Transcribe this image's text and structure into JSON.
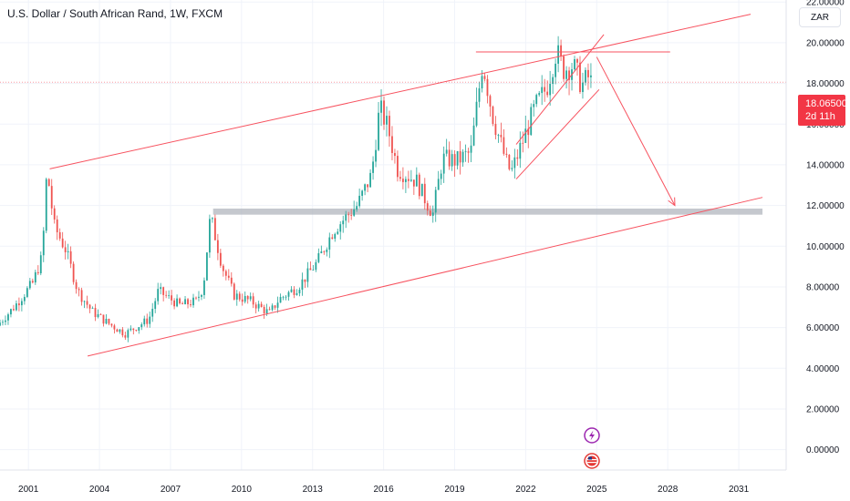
{
  "header": {
    "title": "U.S. Dollar / South African Rand, 1W, FXCM",
    "currency_button": "ZAR"
  },
  "price_badge": {
    "price": "18.06500",
    "countdown": "2d 11h"
  },
  "colors": {
    "up": "#26a69a",
    "down": "#ef5350",
    "drawing": "#f7525f",
    "support_zone": "#b2b5be",
    "price_badge": "#f23645"
  },
  "icons": [
    "lightning-event-icon",
    "us-flag-event-icon"
  ],
  "chart_data": {
    "type": "candlestick",
    "title": "U.S. Dollar / South African Rand, 1W, FXCM",
    "x_ticks": [
      "2001",
      "2004",
      "2007",
      "2010",
      "2013",
      "2016",
      "2019",
      "2022",
      "2025",
      "2028",
      "2031"
    ],
    "x_tick_years": [
      2001,
      2004,
      2007,
      2010,
      2013,
      2016,
      2019,
      2022,
      2025,
      2028,
      2031
    ],
    "y_ticks": [
      "22.00000",
      "20.00000",
      "18.00000",
      "16.00000",
      "14.00000",
      "12.00000",
      "10.00000",
      "8.00000",
      "6.00000",
      "4.00000",
      "2.00000",
      "0.00000"
    ],
    "y_tick_values": [
      22,
      20,
      18,
      16,
      14,
      12,
      10,
      8,
      6,
      4,
      2,
      0
    ],
    "xlim": [
      1999.8,
      2033.0
    ],
    "ylim": [
      -1.0,
      22.1
    ],
    "last_price": 18.065,
    "price_path": [
      [
        1999.8,
        6.1
      ],
      [
        2000.5,
        7.0
      ],
      [
        2001.3,
        8.2
      ],
      [
        2001.7,
        9.5
      ],
      [
        2001.9,
        13.8
      ],
      [
        2002.2,
        11.0
      ],
      [
        2002.7,
        9.8
      ],
      [
        2003.2,
        7.8
      ],
      [
        2003.8,
        6.8
      ],
      [
        2004.5,
        6.2
      ],
      [
        2005.2,
        5.7
      ],
      [
        2006.2,
        6.4
      ],
      [
        2006.6,
        7.8
      ],
      [
        2007.5,
        7.1
      ],
      [
        2008.2,
        7.3
      ],
      [
        2008.5,
        8.0
      ],
      [
        2008.8,
        11.5
      ],
      [
        2009.3,
        9.0
      ],
      [
        2009.8,
        7.6
      ],
      [
        2010.5,
        7.3
      ],
      [
        2011.3,
        6.7
      ],
      [
        2011.7,
        7.4
      ],
      [
        2012.5,
        8.0
      ],
      [
        2013.3,
        9.2
      ],
      [
        2014.0,
        10.8
      ],
      [
        2015.0,
        12.0
      ],
      [
        2015.6,
        13.5
      ],
      [
        2015.95,
        16.8
      ],
      [
        2016.3,
        15.8
      ],
      [
        2016.7,
        13.8
      ],
      [
        2017.5,
        13.2
      ],
      [
        2018.0,
        12.0
      ],
      [
        2018.2,
        11.6
      ],
      [
        2018.6,
        14.3
      ],
      [
        2019.2,
        14.2
      ],
      [
        2019.8,
        14.6
      ],
      [
        2020.3,
        19.1
      ],
      [
        2020.7,
        16.5
      ],
      [
        2021.3,
        14.1
      ],
      [
        2021.5,
        13.6
      ],
      [
        2022.0,
        15.2
      ],
      [
        2022.5,
        16.8
      ],
      [
        2023.0,
        17.8
      ],
      [
        2023.4,
        19.6
      ],
      [
        2023.7,
        18.7
      ],
      [
        2024.1,
        18.9
      ],
      [
        2024.5,
        17.9
      ],
      [
        2024.75,
        18.3
      ],
      [
        2024.85,
        18.06
      ]
    ],
    "annotations": {
      "channel_upper": [
        [
          2001.9,
          13.8
        ],
        [
          2031.5,
          21.4
        ]
      ],
      "channel_lower": [
        [
          2003.5,
          4.6
        ],
        [
          2032.0,
          12.4
        ]
      ],
      "resistance_line": [
        [
          2019.9,
          19.55
        ],
        [
          2028.1,
          19.55
        ]
      ],
      "support_zone": [
        2008.8,
        2032.0,
        11.55,
        11.85
      ],
      "inner_channel_upper": [
        [
          2021.6,
          15.0
        ],
        [
          2025.3,
          20.4
        ]
      ],
      "inner_channel_lower": [
        [
          2021.6,
          13.3
        ],
        [
          2025.1,
          17.7
        ]
      ],
      "projection_arrow": [
        [
          2025.0,
          19.3
        ],
        [
          2028.3,
          12.0
        ]
      ],
      "current_price_line": 18.065
    }
  }
}
